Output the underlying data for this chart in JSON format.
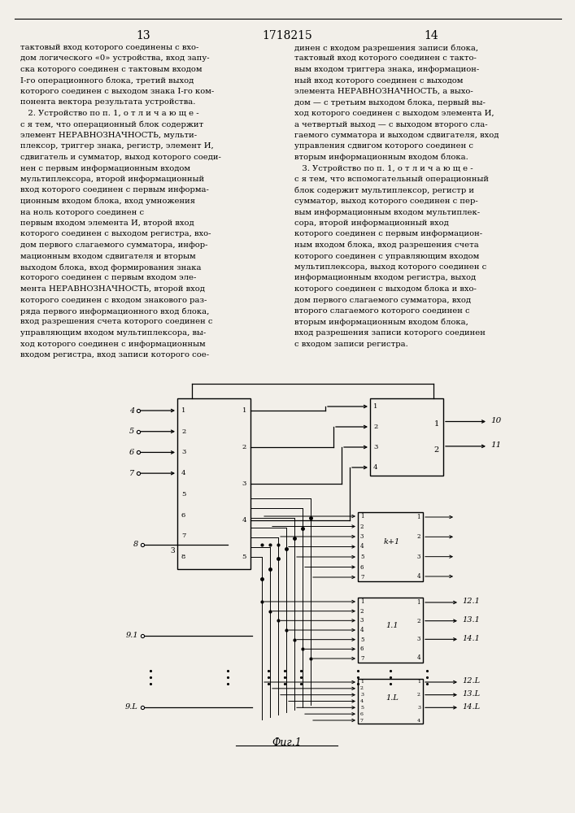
{
  "page_number_left": "13",
  "page_number_center": "1718215",
  "page_number_right": "14",
  "col1_lines": [
    "тактовый вход которого соединены с вхо-",
    "дом логического «0» устройства, вход запу-",
    "ска которого соединен с тактовым входом",
    "I-го операционного блока, третий выход",
    "которого соединен с выходом знака I-го ком-",
    "понента вектора результата устройства.",
    "   2. Устройство по п. 1, о т л и ч а ю щ е -",
    "с я тем, что операционный блок содержит",
    "элемент НЕРАВНОЗНАЧНОСТЬ, мульти-",
    "плексор, триггер знака, регистр, элемент И,",
    "сдвигатель и сумматор, выход которого соеди-",
    "нен с первым информационным входом",
    "мультиплексора, второй информационный",
    "вход которого соединен с первым информа-",
    "ционным входом блока, вход умножения",
    "на ноль которого соединен с",
    "первым входом элемента И, второй вход",
    "которого соединен с выходом регистра, вхо-",
    "дом первого слагаемого сумматора, инфор-",
    "мационным входом сдвигателя и вторым",
    "выходом блока, вход формирования знака",
    "которого соединен с первым входом эле-",
    "мента НЕРАВНОЗНАЧНОСТЬ, второй вход",
    "которого соединен с входом знакового раз-",
    "ряда первого информационного вход блока,",
    "вход разрешения счета которого соединен с",
    "управляющим входом мультиплексора, вы-",
    "ход которого соединен с информационным",
    "входом регистра, вход записи которого сое-"
  ],
  "col2_lines": [
    "динен с входом разрешения записи блока,",
    "тактовый вход которого соединен с такто-",
    "вым входом триггера знака, информацион-",
    "ный вход которого соединен с выходом",
    "элемента НЕРАВНОЗНАЧНОСТЬ, а выхо-",
    "дом — с третьим выходом блока, первый вы-",
    "ход которого соединен с выходом элемента И,",
    "а четвертый выход — с выходом второго сла-",
    "гаемого сумматора и выходом сдвигателя, вход",
    "управления сдвигом которого соединен с",
    "вторым информационным входом блока.",
    "   3. Устройство по п. 1, о т л и ч а ю щ е -",
    "с я тем, что вспомогательный операционный",
    "блок содержит мультиплексор, регистр и",
    "сумматор, выход которого соединен с пер-",
    "вым информационным входом мультиплек-",
    "сора, второй информационный вход",
    "которого соединен с первым информацион-",
    "ным входом блока, вход разрешения счета",
    "которого соединен с управляющим входом",
    "мультиплексора, выход которого соединен с",
    "информационным входом регистра, выход",
    "которого соединен с выходом блока и вхо-",
    "дом первого слагаемого сумматора, вход",
    "второго слагаемого которого соединен с",
    "вторым информационным входом блока,",
    "вход разрешения записи которого соединен",
    "с входом записи регистра."
  ],
  "fig_label": "Фиг.1",
  "bg_color": "#f2efe9"
}
